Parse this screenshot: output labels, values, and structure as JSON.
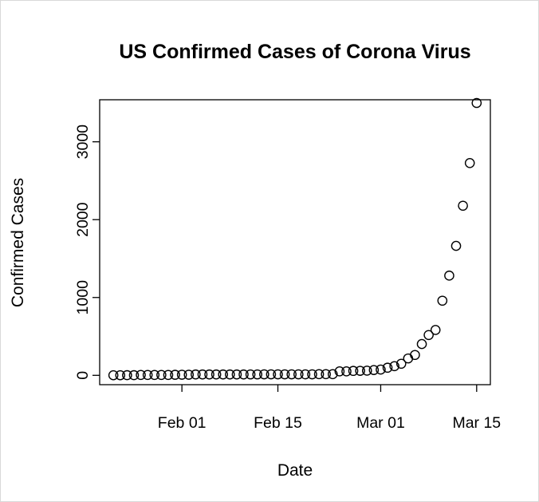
{
  "chart_data": {
    "type": "scatter",
    "title": "US Confirmed Cases of Corona Virus",
    "xlabel": "Date",
    "ylabel": "Confirmed Cases",
    "x_start": "2020-01-22",
    "x_tick_labels": [
      {
        "date": "2020-02-01",
        "label": "Feb 01"
      },
      {
        "date": "2020-02-15",
        "label": "Feb 15"
      },
      {
        "date": "2020-03-01",
        "label": "Mar 01"
      },
      {
        "date": "2020-03-15",
        "label": "Mar 15"
      }
    ],
    "y_ticks": [
      0,
      1000,
      2000,
      3000
    ],
    "y_tick_labels": [
      "0",
      "1000",
      "2000",
      "3000"
    ],
    "xlim": [
      "2020-01-20",
      "2020-03-17"
    ],
    "ylim": [
      -120,
      3540
    ],
    "grid": false,
    "marker": "open-circle",
    "values": [
      1,
      1,
      2,
      2,
      5,
      5,
      5,
      5,
      5,
      7,
      8,
      8,
      11,
      11,
      11,
      11,
      11,
      11,
      11,
      11,
      12,
      12,
      13,
      13,
      13,
      13,
      13,
      13,
      13,
      13,
      15,
      15,
      15,
      51,
      51,
      57,
      58,
      60,
      68,
      74,
      98,
      118,
      149,
      217,
      262,
      402,
      518,
      583,
      959,
      1281,
      1663,
      2179,
      2727,
      3499
    ]
  }
}
